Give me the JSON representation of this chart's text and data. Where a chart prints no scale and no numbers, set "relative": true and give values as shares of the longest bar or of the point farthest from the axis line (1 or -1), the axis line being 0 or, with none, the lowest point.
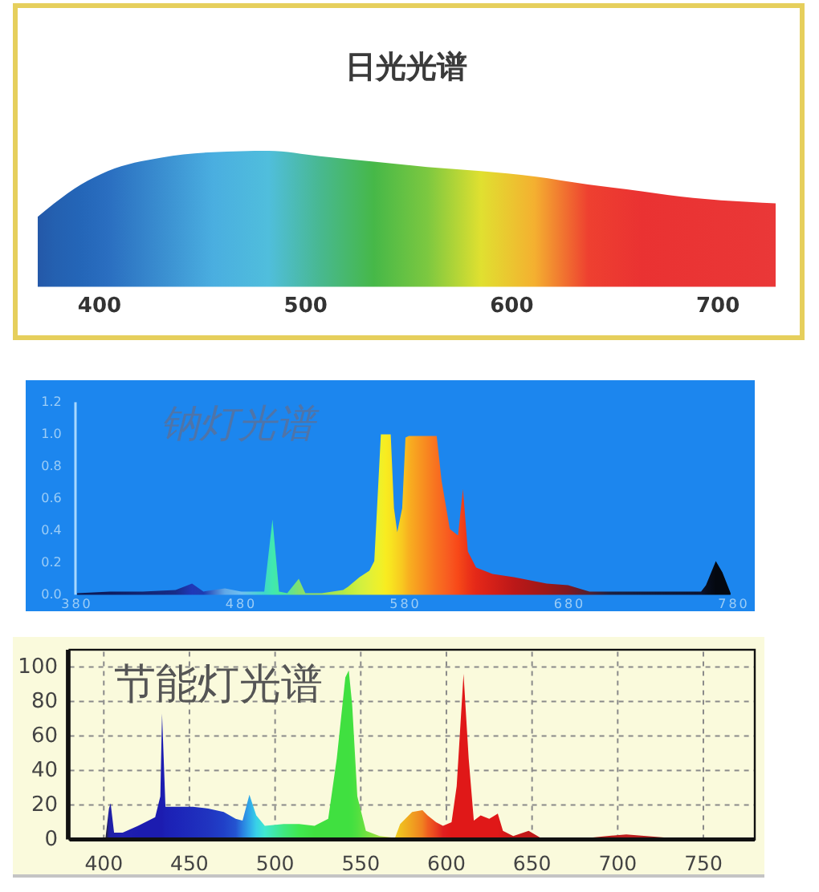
{
  "chart_data": [
    {
      "type": "area",
      "title": "日光光谱",
      "relative": true,
      "xlim": [
        370,
        728
      ],
      "xticks": [
        400,
        500,
        600,
        700
      ],
      "x": [
        370,
        378,
        391,
        404,
        430,
        455,
        482,
        507,
        533,
        559,
        585,
        611,
        637,
        663,
        688,
        715,
        728
      ],
      "values": [
        0.51,
        0.61,
        0.75,
        0.85,
        0.95,
        0.99,
        1,
        0.96,
        0.92,
        0.88,
        0.85,
        0.81,
        0.75,
        0.7,
        0.65,
        0.62,
        0.61
      ],
      "colors": [
        "#2458a8",
        "#2460b0",
        "#2466b8",
        "#2a6ec0",
        "#3a8ed0",
        "#4aaee0",
        "#50bedc",
        "#48b890",
        "#46b848",
        "#7cc840",
        "#e0e030",
        "#f4b030",
        "#ee4030",
        "#ea3232",
        "#ea3434",
        "#ea3636",
        "#ea3838"
      ]
    },
    {
      "type": "area",
      "title": "钠灯光谱",
      "xlim": [
        380,
        780
      ],
      "ylim": [
        0,
        1.2
      ],
      "xticks": [
        380,
        480,
        580,
        680,
        780
      ],
      "yticks": [
        {
          "value": 0,
          "label": "0.0"
        },
        0.2,
        0.4,
        0.6,
        0.8,
        {
          "value": 1,
          "label": "1.0"
        },
        1.2
      ],
      "x": [
        380,
        400,
        420,
        440,
        450,
        457,
        470,
        480,
        494,
        499,
        503,
        508,
        515,
        519,
        529,
        542,
        545,
        552,
        558,
        561,
        565,
        568,
        571,
        573,
        575,
        578,
        580,
        582,
        599,
        602,
        607,
        612,
        615,
        618,
        623,
        633,
        646,
        666,
        679,
        692,
        705,
        737,
        760,
        763,
        769,
        773,
        778
      ],
      "values": [
        0.01,
        0.02,
        0.02,
        0.03,
        0.07,
        0.02,
        0.04,
        0.02,
        0.02,
        0.47,
        0.02,
        0.01,
        0.1,
        0.01,
        0.01,
        0.03,
        0.05,
        0.11,
        0.15,
        0.21,
        1,
        1,
        1,
        0.54,
        0.39,
        0.54,
        0.98,
        0.99,
        0.99,
        0.71,
        0.41,
        0.37,
        0.66,
        0.27,
        0.17,
        0.13,
        0.11,
        0.07,
        0.06,
        0.02,
        0.02,
        0.02,
        0.02,
        0.06,
        0.21,
        0.14,
        0.01
      ],
      "colors": [
        "#0c1850",
        "#0e1c60",
        "#122470",
        "#182c88",
        "#2038b8",
        "#1e3cb0",
        "#60a8e8",
        "#70c0f0",
        "#40d8c8",
        "#40e8b0",
        "#48e8a0",
        "#58e498",
        "#80e070",
        "#8ce068",
        "#9ce058",
        "#b0e848",
        "#bcec40",
        "#d0f040",
        "#e0f038",
        "#e8f030",
        "#f0f028",
        "#f8ec20",
        "#f8e420",
        "#f8dc20",
        "#f8d420",
        "#f8c820",
        "#f8bc20",
        "#f8b020",
        "#f87020",
        "#f86820",
        "#f85820",
        "#f84818",
        "#f04018",
        "#ec3418",
        "#e42818",
        "#d42018",
        "#bc1818",
        "#9c1818",
        "#801820",
        "#502030",
        "#1c2040",
        "#101838",
        "#0c1430",
        "#080e20",
        "#040810",
        "#040810",
        "#040810"
      ]
    },
    {
      "type": "area",
      "title": "节能灯光谱",
      "xlim": [
        380,
        780
      ],
      "ylim": [
        0,
        110
      ],
      "xticks": [
        400,
        450,
        500,
        550,
        600,
        650,
        700,
        750
      ],
      "yticks": [
        0,
        20,
        40,
        60,
        80,
        100
      ],
      "grid": true,
      "x": [
        380,
        401,
        403,
        404,
        406,
        411,
        420,
        430,
        433,
        434,
        436,
        442,
        452,
        461,
        470,
        477,
        481,
        485,
        489,
        494,
        505,
        514,
        523,
        531,
        536,
        541,
        543,
        545,
        548,
        553,
        561,
        570,
        573,
        580,
        586,
        589,
        594,
        598,
        603,
        606,
        610,
        613,
        616,
        620,
        625,
        630,
        633,
        639,
        648,
        655,
        683,
        705,
        730,
        780
      ],
      "values": [
        1,
        1,
        18,
        21,
        4,
        4,
        8,
        13,
        25,
        73,
        19,
        19,
        19,
        18,
        16,
        12,
        11,
        26,
        14,
        8,
        9,
        9,
        8,
        12,
        47,
        94,
        98,
        78,
        25,
        5,
        2,
        1,
        9,
        16,
        17,
        14,
        10,
        8,
        10,
        31,
        96,
        47,
        11,
        14,
        12,
        15,
        5,
        2,
        5,
        1,
        1,
        3,
        1,
        1
      ],
      "colors": [
        "#202020",
        "#202020",
        "#2020a0",
        "#2020a8",
        "#2020a8",
        "#2020b0",
        "#1c1cb0",
        "#1c1cb0",
        "#1c1cb0",
        "#1c1cb0",
        "#1c20b4",
        "#1c24b8",
        "#1e2cbc",
        "#2034c0",
        "#2040c8",
        "#2454d0",
        "#2a80e0",
        "#30a8e8",
        "#38d0e8",
        "#40e8d0",
        "#40e880",
        "#40e850",
        "#40e040",
        "#40e040",
        "#40e040",
        "#40e040",
        "#40e040",
        "#44e040",
        "#50e040",
        "#70e040",
        "#a0e040",
        "#f0d020",
        "#f0c020",
        "#f0a020",
        "#f08020",
        "#f06020",
        "#e84020",
        "#e02020",
        "#e01818",
        "#e01818",
        "#e01818",
        "#e01818",
        "#e01818",
        "#e01818",
        "#e01818",
        "#e01818",
        "#d81818",
        "#c81818",
        "#c01818",
        "#b81818",
        "#b01818",
        "#c02020",
        "#a01818",
        "#801818"
      ]
    }
  ]
}
